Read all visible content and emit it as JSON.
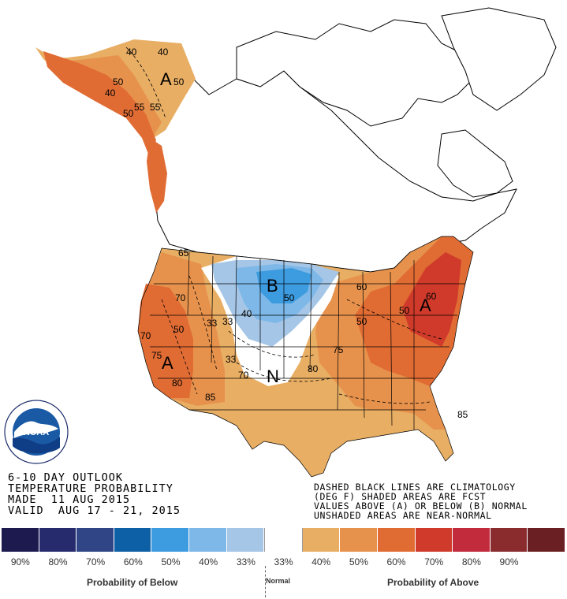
{
  "product": {
    "lines": [
      "6-10 DAY OUTLOOK",
      "TEMPERATURE PROBABILITY",
      "MADE  11 AUG 2015",
      "VALID  AUG 17 - 21, 2015"
    ]
  },
  "notes": {
    "lines": [
      "DASHED BLACK LINES ARE CLIMATOLOGY",
      "(DEG F) SHADED AREAS ARE FCST",
      "VALUES ABOVE (A) OR BELOW (B) NORMAL",
      "UNSHADED AREAS ARE NEAR-NORMAL"
    ]
  },
  "logo": {
    "name": "NOAA",
    "icon": "noaa-logo",
    "ring_text": "NATIONAL OCEANIC AND ATMOSPHERIC ADMINISTRATION · U.S. DEPARTMENT OF COMMERCE"
  },
  "legend": {
    "below_label": "Probability of Below",
    "normal_label": "Normal",
    "above_label": "Probability of Above",
    "categories": [
      {
        "label": "90%",
        "color": "#1c1a4e"
      },
      {
        "label": "80%",
        "color": "#262b6e"
      },
      {
        "label": "70%",
        "color": "#2f4586"
      },
      {
        "label": "60%",
        "color": "#0d5fa6"
      },
      {
        "label": "50%",
        "color": "#3d9be0"
      },
      {
        "label": "40%",
        "color": "#7db8e8"
      },
      {
        "label": "33%",
        "color": "#a5c6e6"
      },
      {
        "label": "33%",
        "color": "#ffffff"
      },
      {
        "label": "40%",
        "color": "#e8ae64"
      },
      {
        "label": "50%",
        "color": "#e7924c"
      },
      {
        "label": "60%",
        "color": "#e06c34"
      },
      {
        "label": "70%",
        "color": "#d03a2a"
      },
      {
        "label": "80%",
        "color": "#c22b3b"
      },
      {
        "label": "90%",
        "color": "#8a2b2e"
      },
      {
        "label": "",
        "color": "#6a1f22"
      }
    ]
  },
  "map_labels": {
    "category_marks": [
      {
        "id": "alaska-a",
        "text": "A"
      },
      {
        "id": "central-b",
        "text": "B"
      },
      {
        "id": "west-a",
        "text": "A"
      },
      {
        "id": "east-a",
        "text": "A"
      },
      {
        "id": "plains-n",
        "text": "N"
      }
    ],
    "contour_values": [
      "40",
      "40",
      "50",
      "50",
      "40",
      "55",
      "55",
      "50",
      "65",
      "70",
      "50",
      "70",
      "75",
      "80",
      "85",
      "50",
      "33",
      "40",
      "33",
      "33",
      "70",
      "60",
      "80",
      "75",
      "50",
      "50",
      "60",
      "85"
    ]
  }
}
